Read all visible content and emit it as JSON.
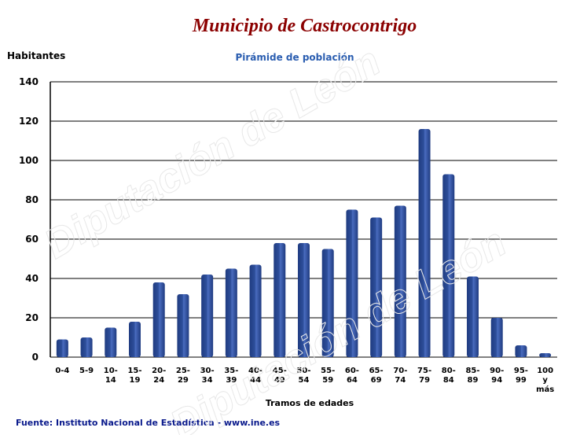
{
  "title": "Municipio de Castrocontrigo",
  "subtitle": "Pirámide de población",
  "footer": "Fuente: Instituto Nacional de Estadística - www.ine.es",
  "watermark": "Diputación de León",
  "colors": {
    "bar": "#2e4f9b",
    "title": "#8b0000",
    "subtitle": "#2a5db0",
    "footer": "#0a1a8c"
  },
  "chart_data": {
    "type": "bar",
    "title": "Pirámide de población",
    "xlabel": "Tramos de edades",
    "ylabel": "Habitantes",
    "ylim": [
      0,
      140
    ],
    "yticks": [
      0,
      20,
      40,
      60,
      80,
      100,
      120,
      140
    ],
    "grid": true,
    "categories": [
      "0-4",
      "5-9",
      "10-14",
      "15-19",
      "20-24",
      "25-29",
      "30-34",
      "35-39",
      "40-44",
      "45-49",
      "50-54",
      "55-59",
      "60-64",
      "65-69",
      "70-74",
      "75-79",
      "80-84",
      "85-89",
      "90-94",
      "95-99",
      "100 y más"
    ],
    "tick_labels": [
      [
        "0-4"
      ],
      [
        "5-9"
      ],
      [
        "10-",
        "14"
      ],
      [
        "15-",
        "19"
      ],
      [
        "20-",
        "24"
      ],
      [
        "25-",
        "29"
      ],
      [
        "30-",
        "34"
      ],
      [
        "35-",
        "39"
      ],
      [
        "40-",
        "44"
      ],
      [
        "45-",
        "49"
      ],
      [
        "50-",
        "54"
      ],
      [
        "55-",
        "59"
      ],
      [
        "60-",
        "64"
      ],
      [
        "65-",
        "69"
      ],
      [
        "70-",
        "74"
      ],
      [
        "75-",
        "79"
      ],
      [
        "80-",
        "84"
      ],
      [
        "85-",
        "89"
      ],
      [
        "90-",
        "94"
      ],
      [
        "95-",
        "99"
      ],
      [
        "100",
        "y",
        "más"
      ]
    ],
    "values": [
      9,
      10,
      15,
      18,
      38,
      32,
      42,
      45,
      47,
      58,
      58,
      55,
      75,
      71,
      77,
      116,
      93,
      41,
      20,
      6,
      2
    ]
  }
}
